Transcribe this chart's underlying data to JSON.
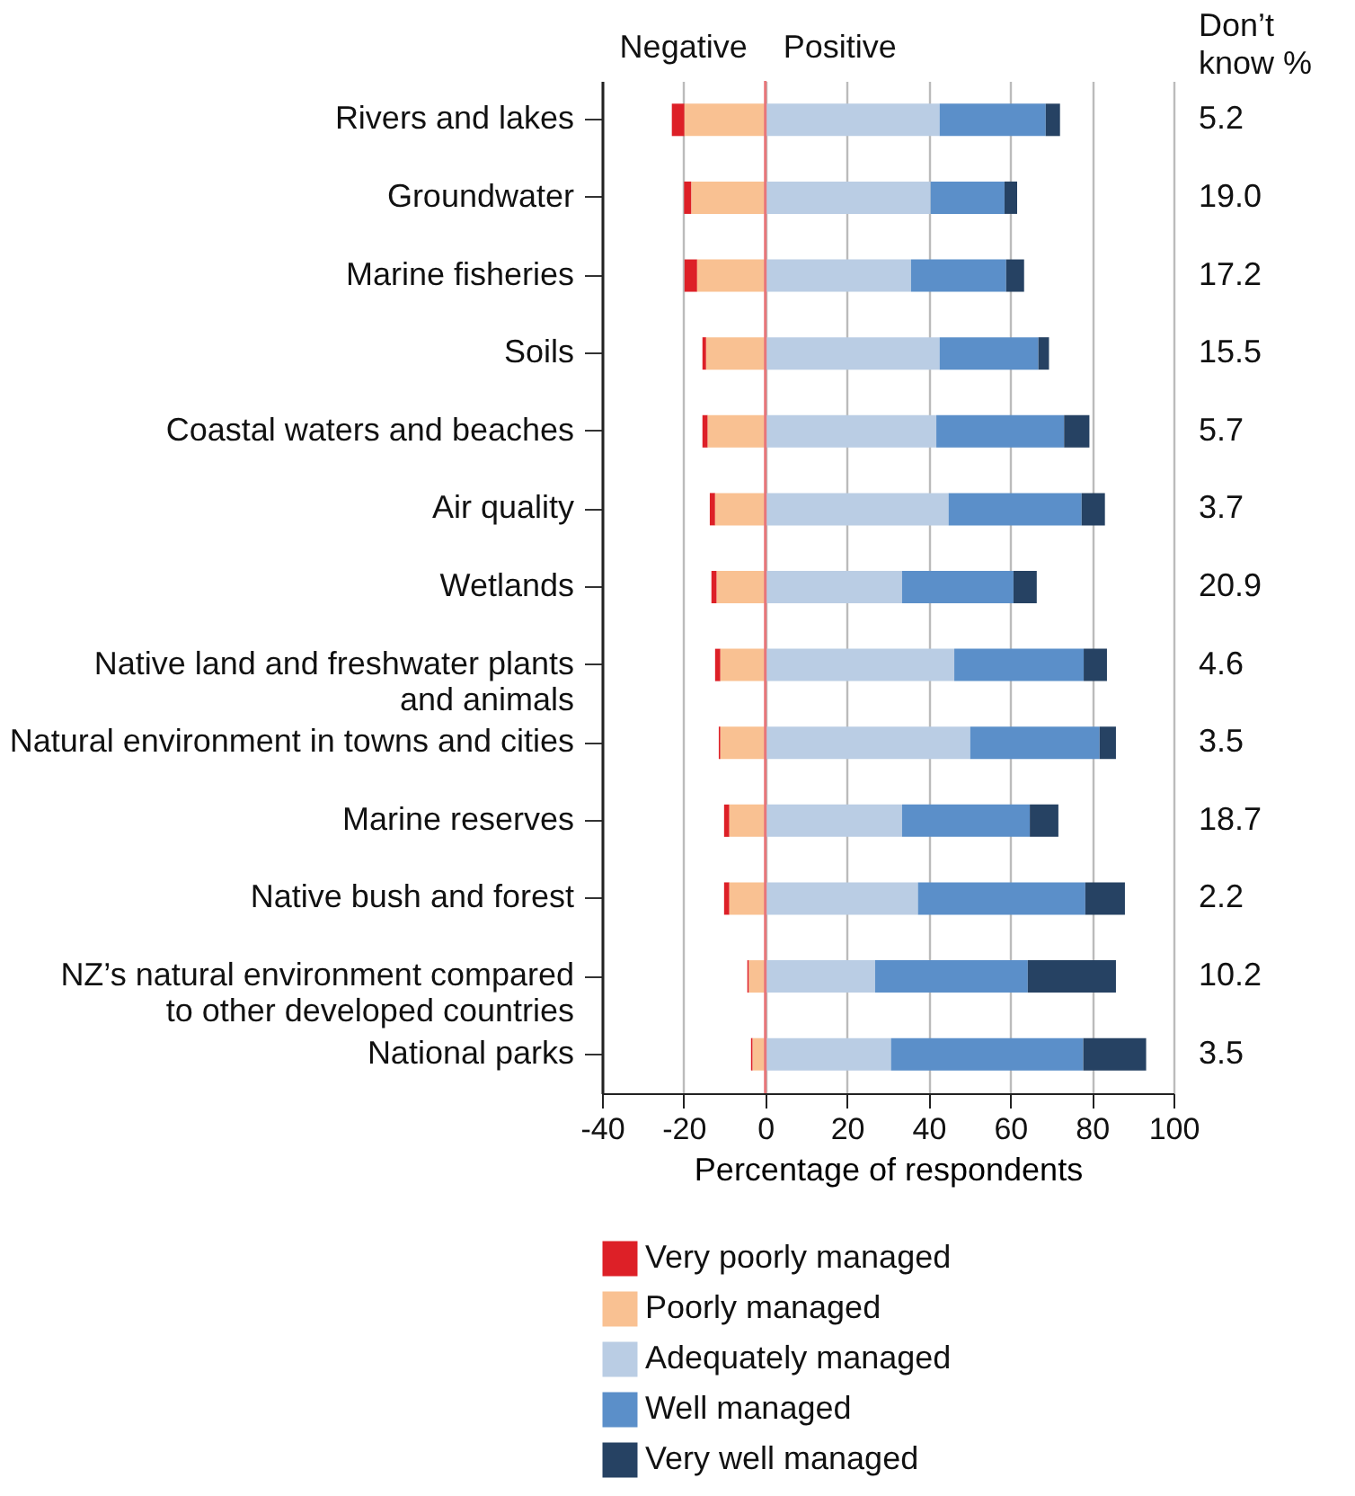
{
  "chart_data": {
    "type": "bar",
    "orientation": "horizontal",
    "stacked": true,
    "categories": [
      "Rivers and lakes",
      "Groundwater",
      "Marine fisheries",
      "Soils",
      "Coastal waters and beaches",
      "Air quality",
      "Wetlands",
      "Native land and freshwater plants and animals",
      "Natural environment in towns and cities",
      "Marine reserves",
      "Native bush and forest",
      "NZ’s natural environment compared to other developed countries",
      "National parks"
    ],
    "series": [
      {
        "name": "Very poorly managed",
        "color": "#dd2027",
        "values": [
          -3.1,
          -1.8,
          -3.1,
          -0.9,
          -1.3,
          -1.3,
          -1.3,
          -1.3,
          -0.4,
          -1.3,
          -1.3,
          -0.4,
          -0.4
        ]
      },
      {
        "name": "Poorly managed",
        "color": "#f9c192",
        "values": [
          -19.8,
          -18.1,
          -16.7,
          -14.5,
          -14.1,
          -12.3,
          -11.9,
          -11.0,
          -11.0,
          -8.8,
          -8.8,
          -4.0,
          -3.1
        ]
      },
      {
        "name": "Adequately managed",
        "color": "#bacde4",
        "values": [
          42.7,
          40.5,
          35.7,
          42.7,
          41.9,
          44.9,
          33.5,
          46.3,
          50.2,
          33.5,
          37.4,
          26.9,
          30.8
        ]
      },
      {
        "name": "Well managed",
        "color": "#5b8fc9",
        "values": [
          26.0,
          18.1,
          23.3,
          24.2,
          31.3,
          32.6,
          27.3,
          31.7,
          31.7,
          31.3,
          41.0,
          37.4,
          47.1
        ]
      },
      {
        "name": "Very well managed",
        "color": "#264263",
        "values": [
          3.5,
          3.1,
          4.4,
          2.6,
          6.2,
          5.7,
          5.7,
          5.7,
          4.0,
          7.0,
          9.7,
          21.6,
          15.4
        ]
      }
    ],
    "xlabel": "Percentage of respondents",
    "xlim": [
      -40,
      100
    ],
    "xticks": [
      -40,
      -20,
      0,
      20,
      40,
      60,
      80,
      100
    ],
    "grid": "x",
    "legend": "bottom",
    "ref_lines": [
      {
        "axis": "x",
        "value": 0,
        "color": "#e8767a"
      }
    ],
    "annotations": [
      "Negative",
      "Positive",
      "Don’t\nknow %",
      "5.2",
      "19.0",
      "17.2",
      "15.5",
      "5.7",
      "3.7",
      "20.9",
      "4.6",
      "3.5",
      "18.7",
      "2.2",
      "10.2",
      "3.5"
    ]
  }
}
